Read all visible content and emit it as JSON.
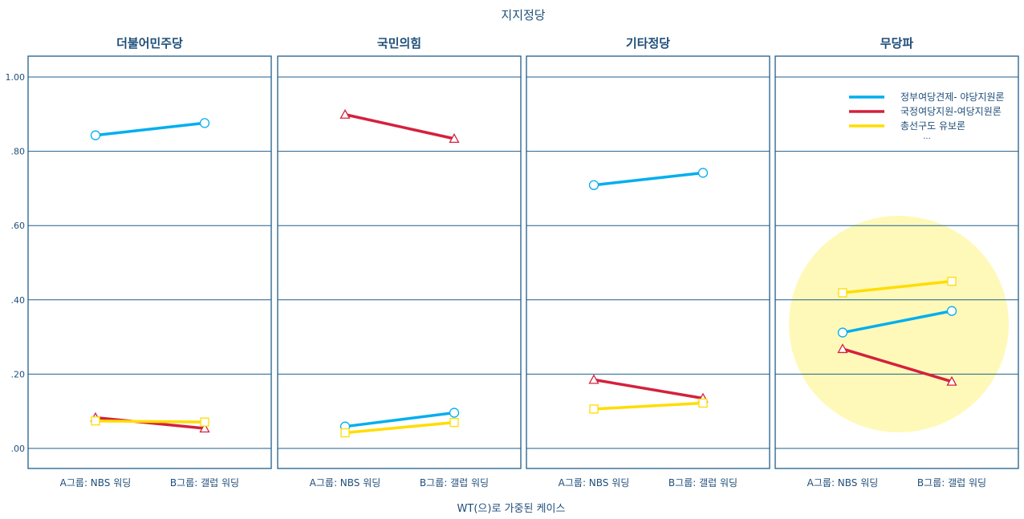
{
  "chart_data": {
    "type": "line",
    "title": "지지정당",
    "footnote": "WT(으)로 가중된 케이스",
    "categories": [
      "A그룹: NBS 워딩",
      "B그룹: 갤럽 워딩"
    ],
    "y_ticks": [
      ".00",
      ".20",
      ".40",
      ".60",
      ".80",
      "1.00"
    ],
    "ylim": [
      -0.05,
      1.06
    ],
    "legend": {
      "placement": "top-right",
      "entries": [
        "정부여당견제- 야당지원론",
        "국정여당지원-여당지원론",
        "총선구도 유보론"
      ],
      "more": "..."
    },
    "series_styles": [
      {
        "color": "#00aeef",
        "marker": "circle"
      },
      {
        "color": "#d4213d",
        "marker": "triangle"
      },
      {
        "color": "#ffdd00",
        "marker": "square"
      }
    ],
    "panels": [
      {
        "title": "더불어민주당",
        "series": [
          {
            "name": "정부여당견제- 야당지원론",
            "values": [
              0.843,
              0.876
            ]
          },
          {
            "name": "국정여당지원-여당지원론",
            "values": [
              0.083,
              0.054
            ]
          },
          {
            "name": "총선구도 유보론",
            "values": [
              0.074,
              0.071
            ]
          }
        ]
      },
      {
        "title": "국민의힘",
        "series": [
          {
            "name": "정부여당견제- 야당지원론",
            "values": [
              0.059,
              0.096
            ]
          },
          {
            "name": "국정여당지원-여당지원론",
            "values": [
              0.899,
              0.834
            ]
          },
          {
            "name": "총선구도 유보론",
            "values": [
              0.042,
              0.07
            ]
          }
        ]
      },
      {
        "title": "기타정당",
        "series": [
          {
            "name": "정부여당견제- 야당지원론",
            "values": [
              0.709,
              0.742
            ]
          },
          {
            "name": "국정여당지원-여당지원론",
            "values": [
              0.185,
              0.135
            ]
          },
          {
            "name": "총선구도 유보론",
            "values": [
              0.106,
              0.122
            ]
          }
        ]
      },
      {
        "title": "무당파",
        "series": [
          {
            "name": "정부여당견제- 야당지원론",
            "values": [
              0.312,
              0.37
            ]
          },
          {
            "name": "국정여당지원-여당지원론",
            "values": [
              0.268,
              0.18
            ]
          },
          {
            "name": "총선구도 유보론",
            "values": [
              0.419,
              0.45
            ]
          }
        ]
      }
    ],
    "highlight": {
      "panel": 3,
      "color": "#fff480"
    }
  }
}
